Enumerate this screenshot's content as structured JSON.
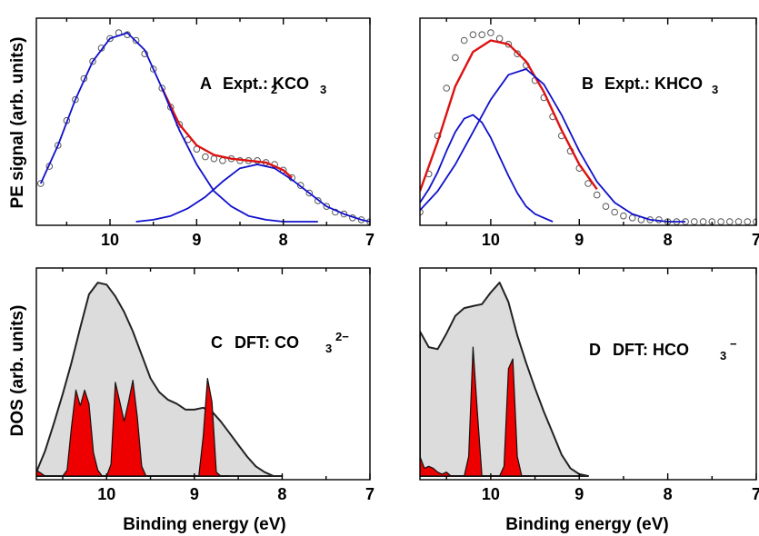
{
  "figure": {
    "ylabel_top": "PE signal (arb. units)",
    "ylabel_bottom": "DOS (arb. units)",
    "xlabel": "Binding energy (eV)"
  },
  "chart_data": [
    {
      "id": "A",
      "type": "line",
      "label": "A",
      "title_parts": [
        "Expt.: K",
        "2",
        "CO",
        "3"
      ],
      "xlim": [
        10.85,
        7.0
      ],
      "ylim": [
        0,
        1.0
      ],
      "xticks": [
        "10",
        "9",
        "8",
        "7"
      ],
      "xtick_values": [
        10,
        9,
        8,
        7
      ],
      "series": [
        {
          "role": "data",
          "color": "#555555",
          "x": [
            10.8,
            10.7,
            10.6,
            10.5,
            10.4,
            10.3,
            10.2,
            10.1,
            10.0,
            9.9,
            9.8,
            9.7,
            9.6,
            9.5,
            9.4,
            9.3,
            9.2,
            9.1,
            9.0,
            8.9,
            8.8,
            8.7,
            8.6,
            8.5,
            8.4,
            8.3,
            8.2,
            8.1,
            8.0,
            7.9,
            7.8,
            7.7,
            7.6,
            7.5,
            7.4,
            7.3,
            7.2,
            7.1,
            7.0
          ],
          "y": [
            0.2,
            0.29,
            0.4,
            0.53,
            0.64,
            0.75,
            0.84,
            0.91,
            0.96,
            0.99,
            0.98,
            0.95,
            0.88,
            0.8,
            0.7,
            0.6,
            0.51,
            0.43,
            0.38,
            0.34,
            0.33,
            0.32,
            0.33,
            0.32,
            0.32,
            0.32,
            0.31,
            0.3,
            0.27,
            0.23,
            0.19,
            0.15,
            0.11,
            0.08,
            0.05,
            0.04,
            0.02,
            0.01,
            0.0
          ]
        },
        {
          "role": "fit-total",
          "color": "#dd1111",
          "x": [
            9.4,
            9.2,
            9.0,
            8.8,
            8.6,
            8.4,
            8.2,
            8.0,
            7.9
          ],
          "y": [
            0.7,
            0.51,
            0.4,
            0.35,
            0.33,
            0.32,
            0.31,
            0.27,
            0.23
          ]
        },
        {
          "role": "fit-component",
          "color": "#1010cc",
          "x": [
            10.8,
            10.6,
            10.4,
            10.2,
            10.0,
            9.8,
            9.6,
            9.4,
            9.2,
            9.0,
            8.8,
            8.6,
            8.4,
            8.2,
            8.0,
            7.8,
            7.6
          ],
          "y": [
            0.2,
            0.4,
            0.64,
            0.84,
            0.96,
            0.99,
            0.9,
            0.7,
            0.48,
            0.3,
            0.16,
            0.08,
            0.03,
            0.01,
            0.0,
            0.0,
            0.0
          ]
        },
        {
          "role": "fit-component",
          "color": "#1010cc",
          "x": [
            9.7,
            9.5,
            9.3,
            9.1,
            8.9,
            8.7,
            8.5,
            8.3,
            8.1,
            7.9,
            7.7,
            7.5,
            7.3,
            7.1,
            7.0
          ],
          "y": [
            0.0,
            0.01,
            0.03,
            0.07,
            0.13,
            0.21,
            0.28,
            0.3,
            0.28,
            0.22,
            0.15,
            0.08,
            0.04,
            0.01,
            0.0
          ]
        }
      ]
    },
    {
      "id": "B",
      "type": "line",
      "label": "B",
      "title_parts": [
        "Expt.: KHCO",
        "3",
        "",
        ""
      ],
      "xlim": [
        10.8,
        7.0
      ],
      "ylim": [
        0,
        1.0
      ],
      "xticks": [
        "10",
        "9",
        "8",
        "7"
      ],
      "xtick_values": [
        10,
        9,
        8,
        7
      ],
      "series": [
        {
          "role": "data",
          "color": "#555555",
          "x": [
            10.8,
            10.7,
            10.6,
            10.5,
            10.4,
            10.3,
            10.2,
            10.1,
            10.0,
            9.9,
            9.8,
            9.7,
            9.6,
            9.5,
            9.4,
            9.3,
            9.2,
            9.1,
            9.0,
            8.9,
            8.8,
            8.7,
            8.6,
            8.5,
            8.4,
            8.3,
            8.2,
            8.1,
            8.0,
            7.9,
            7.8,
            7.7,
            7.6,
            7.5,
            7.4,
            7.3,
            7.2,
            7.1,
            7.0
          ],
          "y": [
            0.05,
            0.25,
            0.45,
            0.7,
            0.86,
            0.95,
            0.98,
            0.98,
            0.99,
            0.96,
            0.93,
            0.88,
            0.82,
            0.74,
            0.65,
            0.55,
            0.45,
            0.37,
            0.28,
            0.2,
            0.14,
            0.08,
            0.05,
            0.03,
            0.02,
            0.01,
            0.01,
            0.01,
            0.0,
            0.0,
            0.0,
            0.0,
            0.0,
            0.0,
            0.0,
            0.0,
            0.0,
            0.0,
            0.0
          ]
        },
        {
          "role": "fit-total",
          "color": "#dd1111",
          "x": [
            10.8,
            10.6,
            10.4,
            10.2,
            10.0,
            9.8,
            9.6,
            9.4,
            9.2,
            9.0,
            8.8
          ],
          "y": [
            0.16,
            0.42,
            0.71,
            0.89,
            0.95,
            0.93,
            0.84,
            0.68,
            0.48,
            0.3,
            0.17
          ]
        },
        {
          "role": "fit-component",
          "color": "#1010cc",
          "x": [
            10.8,
            10.7,
            10.6,
            10.5,
            10.4,
            10.3,
            10.2,
            10.1,
            10.0,
            9.9,
            9.8,
            9.7,
            9.6,
            9.5,
            9.4,
            9.3
          ],
          "y": [
            0.1,
            0.17,
            0.26,
            0.37,
            0.47,
            0.54,
            0.56,
            0.52,
            0.44,
            0.34,
            0.24,
            0.15,
            0.08,
            0.04,
            0.02,
            0.0
          ]
        },
        {
          "role": "fit-component",
          "color": "#1010cc",
          "x": [
            10.8,
            10.6,
            10.4,
            10.2,
            10.0,
            9.8,
            9.6,
            9.4,
            9.2,
            9.0,
            8.8,
            8.6,
            8.4,
            8.2,
            8.0,
            7.8
          ],
          "y": [
            0.06,
            0.16,
            0.3,
            0.47,
            0.64,
            0.77,
            0.8,
            0.72,
            0.56,
            0.37,
            0.21,
            0.1,
            0.04,
            0.01,
            0.0,
            0.0
          ]
        }
      ]
    },
    {
      "id": "C",
      "type": "area",
      "label": "C",
      "title_parts": [
        "DFT: CO",
        "3",
        "2−",
        ""
      ],
      "xlim": [
        10.8,
        7.0
      ],
      "ylim": [
        0,
        1.0
      ],
      "xticks": [
        "10",
        "9",
        "8",
        "7"
      ],
      "xtick_values": [
        10,
        9,
        8,
        7
      ],
      "series": [
        {
          "role": "broadened-dos",
          "color": "#222222",
          "fill": "#dcdcdc",
          "x": [
            10.8,
            10.7,
            10.6,
            10.5,
            10.4,
            10.3,
            10.2,
            10.1,
            10.0,
            9.9,
            9.8,
            9.7,
            9.6,
            9.5,
            9.4,
            9.3,
            9.2,
            9.1,
            9.0,
            8.9,
            8.8,
            8.7,
            8.6,
            8.5,
            8.4,
            8.3,
            8.2,
            8.1,
            8.0
          ],
          "y": [
            0.02,
            0.13,
            0.27,
            0.42,
            0.58,
            0.76,
            0.93,
            0.99,
            0.98,
            0.92,
            0.84,
            0.74,
            0.62,
            0.5,
            0.43,
            0.39,
            0.37,
            0.34,
            0.34,
            0.35,
            0.33,
            0.28,
            0.22,
            0.16,
            0.1,
            0.05,
            0.02,
            0.0,
            0.0
          ]
        },
        {
          "role": "stick-dos",
          "color": "#111111",
          "fill": "#ee0000",
          "x": [
            10.8,
            10.7,
            10.6,
            10.5,
            10.45,
            10.4,
            10.35,
            10.3,
            10.25,
            10.2,
            10.15,
            10.1,
            10.05,
            10.0,
            9.95,
            9.9,
            9.85,
            9.8,
            9.75,
            9.7,
            9.65,
            9.6,
            9.55,
            9.5,
            9.45,
            9.4,
            9.35,
            9.3,
            9.25,
            9.2,
            9.15,
            9.1,
            9.05,
            9.0,
            8.95,
            8.9,
            8.85,
            8.8,
            8.75,
            8.7,
            8.65,
            8.6
          ],
          "y": [
            0.03,
            0.0,
            0.0,
            0.0,
            0.03,
            0.25,
            0.44,
            0.36,
            0.44,
            0.37,
            0.12,
            0.03,
            0.0,
            0.0,
            0.06,
            0.48,
            0.38,
            0.28,
            0.38,
            0.49,
            0.3,
            0.05,
            0.0,
            0.0,
            0.0,
            0.0,
            0.0,
            0.0,
            0.0,
            0.0,
            0.0,
            0.0,
            0.0,
            0.0,
            0.0,
            0.2,
            0.5,
            0.38,
            0.02,
            0.0,
            0.0,
            0.0
          ]
        }
      ]
    },
    {
      "id": "D",
      "type": "area",
      "label": "D",
      "title_parts": [
        "DFT: HCO",
        "3",
        "−",
        ""
      ],
      "xlim": [
        10.8,
        7.0
      ],
      "ylim": [
        0,
        1.0
      ],
      "xticks": [
        "10",
        "9",
        "8",
        "7"
      ],
      "xtick_values": [
        10,
        9,
        8,
        7
      ],
      "series": [
        {
          "role": "broadened-dos",
          "color": "#222222",
          "fill": "#dcdcdc",
          "x": [
            10.8,
            10.7,
            10.6,
            10.5,
            10.4,
            10.3,
            10.2,
            10.1,
            10.0,
            9.9,
            9.8,
            9.7,
            9.6,
            9.5,
            9.4,
            9.3,
            9.2,
            9.1,
            9.0,
            8.9
          ],
          "y": [
            0.74,
            0.66,
            0.65,
            0.73,
            0.82,
            0.86,
            0.87,
            0.88,
            0.94,
            0.99,
            0.89,
            0.72,
            0.58,
            0.45,
            0.33,
            0.22,
            0.11,
            0.04,
            0.01,
            0.0
          ]
        },
        {
          "role": "stick-dos",
          "color": "#111111",
          "fill": "#ee0000",
          "x": [
            10.8,
            10.75,
            10.7,
            10.65,
            10.6,
            10.55,
            10.5,
            10.45,
            10.4,
            10.35,
            10.3,
            10.25,
            10.2,
            10.15,
            10.1,
            10.05,
            10.0,
            9.95,
            9.9,
            9.85,
            9.8,
            9.75,
            9.7,
            9.65,
            9.6,
            9.55
          ],
          "y": [
            0.1,
            0.04,
            0.05,
            0.04,
            0.02,
            0.01,
            0.02,
            0.0,
            0.0,
            0.0,
            0.0,
            0.1,
            0.66,
            0.32,
            0.0,
            0.0,
            0.0,
            0.0,
            0.0,
            0.05,
            0.55,
            0.6,
            0.1,
            0.0,
            0.0,
            0.0
          ]
        }
      ]
    }
  ]
}
